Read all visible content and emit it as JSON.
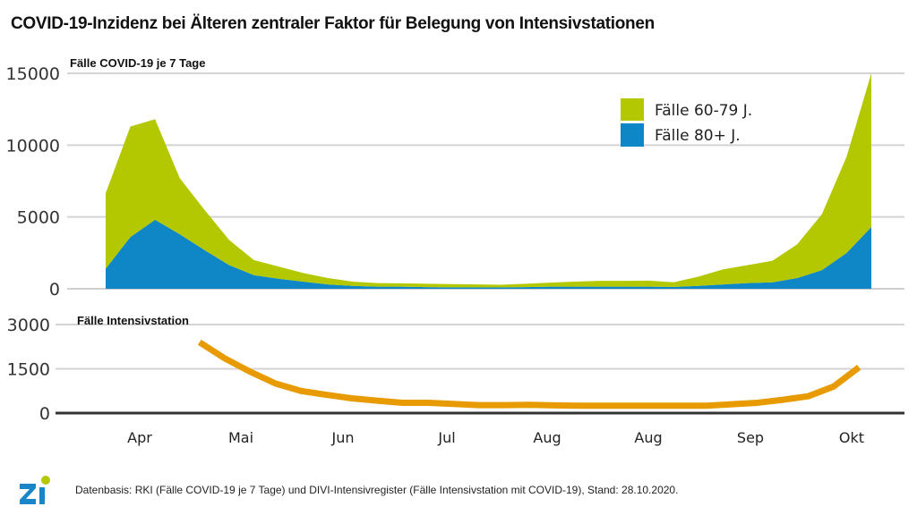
{
  "title": "COVID-19-Inzidenz bei Älteren zentraler Faktor für Belegung von Intensivstationen",
  "footer": "Datenbasis: RKI (Fälle COVID-19 je 7 Tage) und DIVI-Intensivregister (Fälle Intensivstation mit COVID-19), Stand: 28.10.2020.",
  "logo": {
    "text": "Zi",
    "colors": {
      "letters": "#1a86c7",
      "dot": "#b5c800"
    }
  },
  "chart_data": [
    {
      "type": "area",
      "stacked": true,
      "title": "Fälle COVID-19 je 7 Tage",
      "ylabel": "Fälle COVID-19 je 7 Tage",
      "ylim": [
        0,
        15000
      ],
      "yticks": [
        0,
        5000,
        10000,
        15000
      ],
      "grid": true,
      "legend_position": "top-right",
      "x_count": 32,
      "series": [
        {
          "name": "Fälle 80+ J.",
          "color": "#0f86c6",
          "values": [
            1400,
            3600,
            4800,
            3800,
            2700,
            1650,
            950,
            700,
            500,
            300,
            200,
            150,
            150,
            120,
            100,
            100,
            100,
            120,
            150,
            150,
            150,
            150,
            150,
            130,
            200,
            300,
            400,
            450,
            750,
            1300,
            2500,
            4300
          ]
        },
        {
          "name": "Fälle 60-79 J.",
          "color": "#b3c800",
          "values": [
            5250,
            7700,
            7000,
            3900,
            2800,
            1750,
            1050,
            850,
            600,
            450,
            300,
            250,
            230,
            230,
            230,
            200,
            180,
            230,
            280,
            350,
            400,
            400,
            420,
            320,
            650,
            1050,
            1250,
            1500,
            2350,
            3900,
            6700,
            10700
          ]
        }
      ]
    },
    {
      "type": "line",
      "title": "Fälle Intensivstation",
      "ylabel": "Fälle Intensivstation",
      "ylim": [
        0,
        3000
      ],
      "yticks": [
        0,
        1500,
        3000
      ],
      "grid": true,
      "series": [
        {
          "name": "Fälle Intensivstation",
          "color": "#e89b00",
          "x_start_index": 3.8,
          "values": [
            2400,
            1850,
            1400,
            1000,
            750,
            620,
            500,
            420,
            350,
            350,
            310,
            270,
            270,
            280,
            260,
            250,
            250,
            250,
            250,
            250,
            250,
            300,
            350,
            450,
            570,
            900,
            1550
          ]
        }
      ]
    }
  ],
  "x_axis": {
    "categories": [
      "Apr",
      "Mai",
      "Jun",
      "Jul",
      "Aug",
      "Aug",
      "Sep",
      "Okt"
    ]
  },
  "legend": [
    {
      "label": "Fälle 60-79 J.",
      "color": "#b3c800"
    },
    {
      "label": "Fälle 80+ J.",
      "color": "#0f86c6"
    }
  ],
  "labels": {
    "top_panel": "Fälle COVID-19 je 7 Tage",
    "bottom_panel": "Fälle Intensivstation",
    "top_yticks": [
      "15000",
      "10000",
      "5000",
      "0"
    ],
    "bottom_yticks": [
      "3000",
      "1500",
      "0"
    ]
  }
}
